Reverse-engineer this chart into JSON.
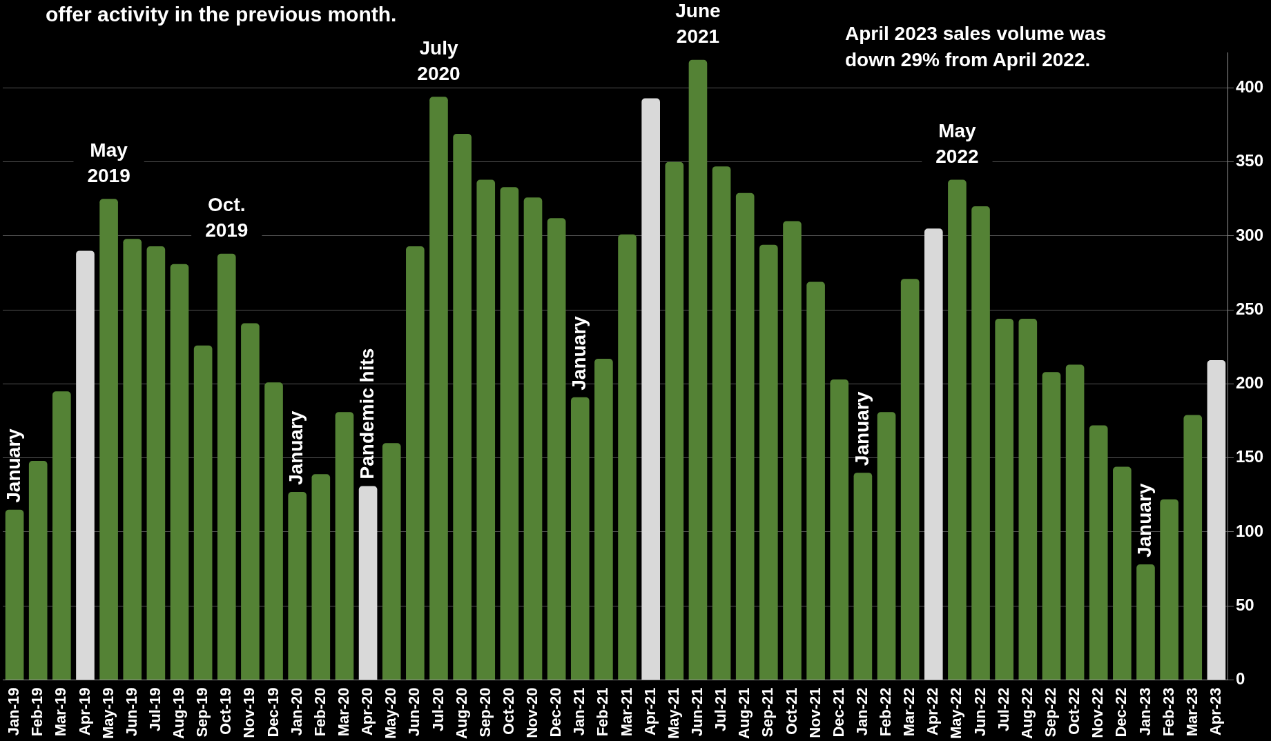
{
  "chart_data": {
    "type": "bar",
    "title": "offer activity in the previous month.",
    "categories": [
      "Jan-19",
      "Feb-19",
      "Mar-19",
      "Apr-19",
      "May-19",
      "Jun-19",
      "Jul-19",
      "Aug-19",
      "Sep-19",
      "Oct-19",
      "Nov-19",
      "Dec-19",
      "Jan-20",
      "Feb-20",
      "Mar-20",
      "Apr-20",
      "May-20",
      "Jun-20",
      "Jul-20",
      "Aug-20",
      "Sep-20",
      "Oct-20",
      "Nov-20",
      "Dec-20",
      "Jan-21",
      "Feb-21",
      "Mar-21",
      "Apr-21",
      "May-21",
      "Jun-21",
      "Jul-21",
      "Aug-21",
      "Sep-21",
      "Oct-21",
      "Nov-21",
      "Dec-21",
      "Jan-22",
      "Feb-22",
      "Mar-22",
      "Apr-22",
      "May-22",
      "Jun-22",
      "Jul-22",
      "Aug-22",
      "Sep-22",
      "Oct-22",
      "Nov-22",
      "Dec-22",
      "Jan-23",
      "Feb-23",
      "Mar-23",
      "Apr-23"
    ],
    "values": [
      115,
      148,
      195,
      290,
      325,
      298,
      293,
      281,
      226,
      288,
      241,
      201,
      127,
      139,
      181,
      131,
      160,
      293,
      394,
      369,
      338,
      333,
      326,
      312,
      191,
      217,
      301,
      393,
      350,
      419,
      347,
      329,
      294,
      310,
      269,
      203,
      140,
      181,
      271,
      305,
      338,
      320,
      244,
      244,
      208,
      213,
      172,
      144,
      78,
      122,
      179,
      216
    ],
    "colors": [
      "#548235",
      "#548235",
      "#548235",
      "#d9d9d9",
      "#548235",
      "#548235",
      "#548235",
      "#548235",
      "#548235",
      "#548235",
      "#548235",
      "#548235",
      "#548235",
      "#548235",
      "#548235",
      "#d9d9d9",
      "#548235",
      "#548235",
      "#548235",
      "#548235",
      "#548235",
      "#548235",
      "#548235",
      "#548235",
      "#548235",
      "#548235",
      "#548235",
      "#d9d9d9",
      "#548235",
      "#548235",
      "#548235",
      "#548235",
      "#548235",
      "#548235",
      "#548235",
      "#548235",
      "#548235",
      "#548235",
      "#548235",
      "#d9d9d9",
      "#548235",
      "#548235",
      "#548235",
      "#548235",
      "#548235",
      "#548235",
      "#548235",
      "#548235",
      "#548235",
      "#548235",
      "#548235",
      "#d9d9d9"
    ],
    "ylim": [
      0,
      424
    ],
    "yticks": [
      0,
      50,
      100,
      150,
      200,
      250,
      300,
      350,
      400
    ],
    "grid": "y",
    "legend": false,
    "annotations": [
      {
        "text": "January",
        "x": "Jan-19",
        "y": 115
      },
      {
        "text": "May\n2019",
        "x": "May-19",
        "y": 325
      },
      {
        "text": "Oct.\n2019",
        "x": "Oct-19",
        "y": 288
      },
      {
        "text": "January",
        "x": "Jan-20",
        "y": 127
      },
      {
        "text": "Pandemic hits",
        "x": "Apr-20",
        "y": 131
      },
      {
        "text": "July\n2020",
        "x": "Jul-20",
        "y": 394
      },
      {
        "text": "January",
        "x": "Jan-21",
        "y": 191
      },
      {
        "text": "June\n2021",
        "x": "Jun-21",
        "y": 419
      },
      {
        "text": "January",
        "x": "Jan-22",
        "y": 140
      },
      {
        "text": "May\n2022",
        "x": "May-22",
        "y": 338
      },
      {
        "text": "January",
        "x": "Jan-23",
        "y": 78
      },
      "April 2023 sales volume was\ndown 29% from April 2022."
    ]
  }
}
